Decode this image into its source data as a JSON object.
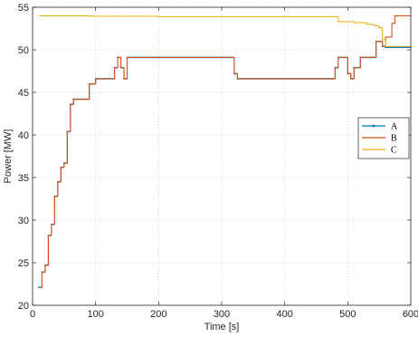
{
  "chart_data": {
    "type": "line",
    "title": "",
    "xlabel": "Time [s]",
    "ylabel": "Power [MW]",
    "xlim": [
      0,
      600
    ],
    "ylim": [
      20,
      55
    ],
    "x_ticks": [
      0,
      100,
      200,
      300,
      400,
      500,
      600
    ],
    "y_ticks": [
      20,
      25,
      30,
      35,
      40,
      45,
      50,
      55
    ],
    "grid": true,
    "legend_position": "right",
    "step": true,
    "series": [
      {
        "name": "A",
        "color": "#0072BD",
        "marker": "dot",
        "x": [
          10,
          15,
          20,
          25,
          30,
          35,
          40,
          45,
          50,
          55,
          60,
          65,
          70,
          90,
          100,
          130,
          135,
          140,
          145,
          150,
          160,
          320,
          325,
          480,
          485,
          490,
          500,
          505,
          510,
          520,
          540,
          545,
          550,
          555,
          560,
          600
        ],
        "y": [
          22.1,
          23.9,
          24.7,
          28.2,
          29.5,
          32.8,
          34.5,
          36.2,
          36.7,
          40.4,
          43.6,
          44.2,
          44.2,
          46.0,
          46.6,
          47.9,
          49.1,
          47.9,
          46.6,
          49.1,
          49.1,
          47.2,
          46.6,
          47.9,
          49.1,
          49.1,
          47.2,
          46.6,
          47.9,
          49.1,
          49.1,
          51.0,
          51.0,
          50.4,
          50.3,
          50.3
        ]
      },
      {
        "name": "B",
        "color": "#D95319",
        "marker": "none",
        "x": [
          10,
          15,
          20,
          25,
          30,
          35,
          40,
          45,
          50,
          55,
          60,
          65,
          70,
          90,
          100,
          130,
          135,
          140,
          145,
          150,
          160,
          320,
          325,
          480,
          485,
          490,
          500,
          505,
          510,
          520,
          540,
          545,
          550,
          555,
          560,
          565,
          570,
          575,
          600
        ],
        "y": [
          22.1,
          23.9,
          24.7,
          28.2,
          29.5,
          32.8,
          34.5,
          36.2,
          36.7,
          40.4,
          43.6,
          44.2,
          44.2,
          46.0,
          46.6,
          47.9,
          49.1,
          47.9,
          46.6,
          49.1,
          49.1,
          47.2,
          46.6,
          47.9,
          49.1,
          49.1,
          47.2,
          46.6,
          47.9,
          49.1,
          49.1,
          51.0,
          51.0,
          50.4,
          51.5,
          51.5,
          53.1,
          54.0,
          54.0
        ]
      },
      {
        "name": "C",
        "color": "#EDB120",
        "marker": "none",
        "x": [
          10,
          30,
          90,
          100,
          200,
          300,
          480,
          485,
          500,
          510,
          530,
          540,
          545,
          550,
          555,
          560,
          600
        ],
        "y": [
          54.0,
          54.0,
          53.95,
          53.95,
          53.9,
          53.9,
          53.9,
          53.3,
          53.3,
          53.2,
          53.0,
          52.9,
          52.8,
          52.6,
          51.2,
          50.4,
          50.3
        ]
      }
    ]
  }
}
